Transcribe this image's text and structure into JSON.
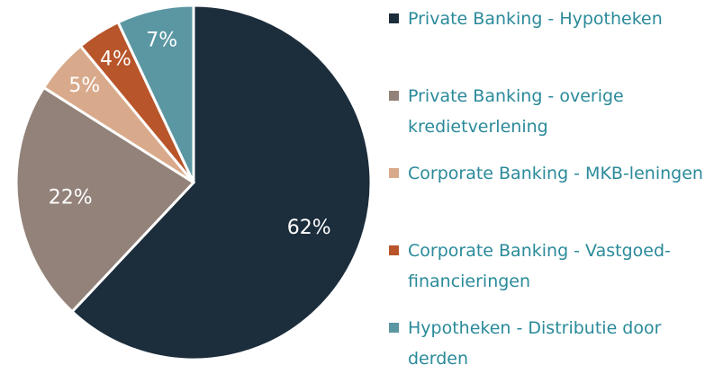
{
  "chart_data": {
    "type": "pie",
    "categories": [
      "Private Banking - Hypotheken",
      "Private Banking - overige kredietverlening",
      "Corporate Banking - MKB-leningen",
      "Corporate Banking - Vastgoed-financieringen",
      "Hypotheken - Distributie door derden"
    ],
    "values": [
      62,
      22,
      5,
      4,
      7
    ],
    "value_labels": [
      "62%",
      "22%",
      "5%",
      "4%",
      "7%"
    ],
    "colors": [
      "#1c2d3c",
      "#938279",
      "#d8aa8b",
      "#b8552a",
      "#5a97a3"
    ],
    "legend": "right"
  }
}
